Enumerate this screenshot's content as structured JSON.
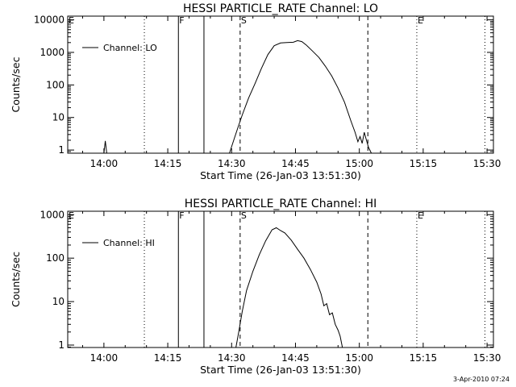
{
  "footer": {
    "timestamp": "3-Apr-2010 07:24"
  },
  "chart_data": [
    {
      "type": "line",
      "title": "HESSI PARTICLE_RATE Channel: LO",
      "xlabel": "Start Time (26-Jan-03 13:51:30)",
      "ylabel": "Counts/sec",
      "xticks": [
        "14:00",
        "14:15",
        "14:30",
        "14:45",
        "15:00",
        "15:15",
        "15:30"
      ],
      "yticks": [
        "1",
        "10",
        "100",
        "1000",
        "10000"
      ],
      "y_scale": "log",
      "xlim": [
        "13:51:30",
        "15:31:30"
      ],
      "ylim": [
        0.8,
        13000
      ],
      "legend": {
        "label": "Channel: LO",
        "placement": "top-left"
      },
      "markers": [
        {
          "label": "E",
          "time": "13:51:30",
          "style": "dotted"
        },
        {
          "label": "",
          "time": "14:09:30",
          "style": "dotted"
        },
        {
          "label": "F",
          "time": "14:17:30",
          "style": "solid"
        },
        {
          "label": "",
          "time": "14:23:30",
          "style": "solid"
        },
        {
          "label": "S",
          "time": "14:32:00",
          "style": "dashed"
        },
        {
          "label": "",
          "time": "15:02:00",
          "style": "dashed"
        },
        {
          "label": "E",
          "time": "15:13:30",
          "style": "dotted"
        },
        {
          "label": "",
          "time": "15:29:30",
          "style": "dotted"
        }
      ],
      "series": [
        {
          "name": "Channel: LO",
          "segments": [
            [
              [
                "14:00:00",
                0.8
              ],
              [
                "14:00:20",
                1.9
              ],
              [
                "14:00:40",
                0.8
              ]
            ],
            [
              [
                "14:29:30",
                0.8
              ],
              [
                "14:30:30",
                2
              ],
              [
                "14:31:30",
                5
              ],
              [
                "14:32:30",
                12
              ],
              [
                "14:34:00",
                40
              ],
              [
                "14:35:30",
                110
              ],
              [
                "14:37:00",
                320
              ],
              [
                "14:38:30",
                850
              ],
              [
                "14:40:00",
                1600
              ],
              [
                "14:41:30",
                1950
              ],
              [
                "14:43:00",
                2000
              ],
              [
                "14:44:30",
                2050
              ],
              [
                "14:45:30",
                2300
              ],
              [
                "14:46:30",
                2150
              ],
              [
                "14:47:30",
                1700
              ],
              [
                "14:49:00",
                1100
              ],
              [
                "14:50:30",
                700
              ],
              [
                "14:52:00",
                380
              ],
              [
                "14:53:30",
                190
              ],
              [
                "14:55:00",
                80
              ],
              [
                "14:56:30",
                30
              ],
              [
                "14:58:00",
                8
              ],
              [
                "14:59:00",
                3.5
              ],
              [
                "14:59:40",
                1.8
              ],
              [
                "15:00:10",
                2.6
              ],
              [
                "15:00:40",
                1.6
              ],
              [
                "15:01:10",
                3.5
              ],
              [
                "15:01:40",
                2
              ],
              [
                "15:02:10",
                1.2
              ],
              [
                "15:02:50",
                0.8
              ]
            ]
          ]
        }
      ]
    },
    {
      "type": "line",
      "title": "HESSI PARTICLE_RATE Channel: HI",
      "xlabel": "Start Time (26-Jan-03 13:51:30)",
      "ylabel": "Counts/sec",
      "xticks": [
        "14:00",
        "14:15",
        "14:30",
        "14:45",
        "15:00",
        "15:15",
        "15:30"
      ],
      "yticks": [
        "1",
        "10",
        "100",
        "1000"
      ],
      "y_scale": "log",
      "xlim": [
        "13:51:30",
        "15:31:30"
      ],
      "ylim": [
        0.88,
        1200
      ],
      "legend": {
        "label": "Channel: HI",
        "placement": "top-left"
      },
      "markers": [
        {
          "label": "E",
          "time": "13:51:30",
          "style": "dotted"
        },
        {
          "label": "",
          "time": "14:09:30",
          "style": "dotted"
        },
        {
          "label": "F",
          "time": "14:17:30",
          "style": "solid"
        },
        {
          "label": "",
          "time": "14:23:30",
          "style": "solid"
        },
        {
          "label": "S",
          "time": "14:32:00",
          "style": "dashed"
        },
        {
          "label": "",
          "time": "15:02:00",
          "style": "dashed"
        },
        {
          "label": "E",
          "time": "15:13:30",
          "style": "dotted"
        },
        {
          "label": "",
          "time": "15:29:30",
          "style": "dotted"
        }
      ],
      "series": [
        {
          "name": "Channel: HI",
          "segments": [
            [
              [
                "14:31:00",
                0.88
              ],
              [
                "14:31:40",
                2
              ],
              [
                "14:32:30",
                6
              ],
              [
                "14:33:30",
                18
              ],
              [
                "14:35:00",
                50
              ],
              [
                "14:36:30",
                120
              ],
              [
                "14:38:00",
                250
              ],
              [
                "14:39:30",
                450
              ],
              [
                "14:40:30",
                500
              ],
              [
                "14:41:30",
                430
              ],
              [
                "14:42:30",
                380
              ],
              [
                "14:44:00",
                260
              ],
              [
                "14:45:30",
                160
              ],
              [
                "14:47:00",
                100
              ],
              [
                "14:48:30",
                55
              ],
              [
                "14:50:00",
                28
              ],
              [
                "14:51:00",
                15
              ],
              [
                "14:51:40",
                8
              ],
              [
                "14:52:20",
                9
              ],
              [
                "14:53:00",
                5
              ],
              [
                "14:53:40",
                5.5
              ],
              [
                "14:54:20",
                3
              ],
              [
                "14:55:00",
                2.2
              ],
              [
                "14:55:30",
                1.6
              ],
              [
                "14:56:00",
                0.9
              ]
            ]
          ]
        }
      ]
    }
  ]
}
